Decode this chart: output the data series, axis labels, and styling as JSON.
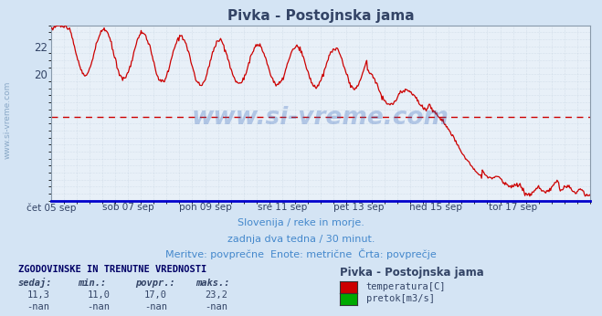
{
  "title": "Pivka - Postojnska jama",
  "bg_color": "#d4e4f4",
  "plot_bg_color": "#e8f0f8",
  "grid_color": "#b8c8d8",
  "line_color": "#cc0000",
  "avg_line_color": "#cc0000",
  "avg_line_value": 17.0,
  "x_tick_labels": [
    "čet 05 sep",
    "sob 07 sep",
    "pon 09 sep",
    "sre 11 sep",
    "pet 13 sep",
    "ned 15 sep",
    "tor 17 sep"
  ],
  "y_ticks": [
    20,
    22
  ],
  "y_min": 11.0,
  "y_max": 23.5,
  "subtitle1": "Slovenija / reke in morje.",
  "subtitle2": "zadnja dva tedna / 30 minut.",
  "subtitle3": "Meritve: povprečne  Enote: metrične  Črta: povprečje",
  "subtitle_color": "#4488cc",
  "table_header": "ZGODOVINSKE IN TRENUTNE VREDNOSTI",
  "col_headers": [
    "sedaj:",
    "min.:",
    "povpr.:",
    "maks.:"
  ],
  "row1_vals": [
    "11,3",
    "11,0",
    "17,0",
    "23,2"
  ],
  "row2_vals": [
    "-nan",
    "-nan",
    "-nan",
    "-nan"
  ],
  "station_name": "Pivka - Postojnska jama",
  "legend_items": [
    [
      "temperatura[C]",
      "#cc0000"
    ],
    [
      "pretok[m3/s]",
      "#00aa00"
    ]
  ],
  "watermark": "www.si-vreme.com",
  "watermark_color": "#3366bb",
  "watermark_alpha": 0.3,
  "side_label": "www.si-vreme.com",
  "n_points": 672
}
